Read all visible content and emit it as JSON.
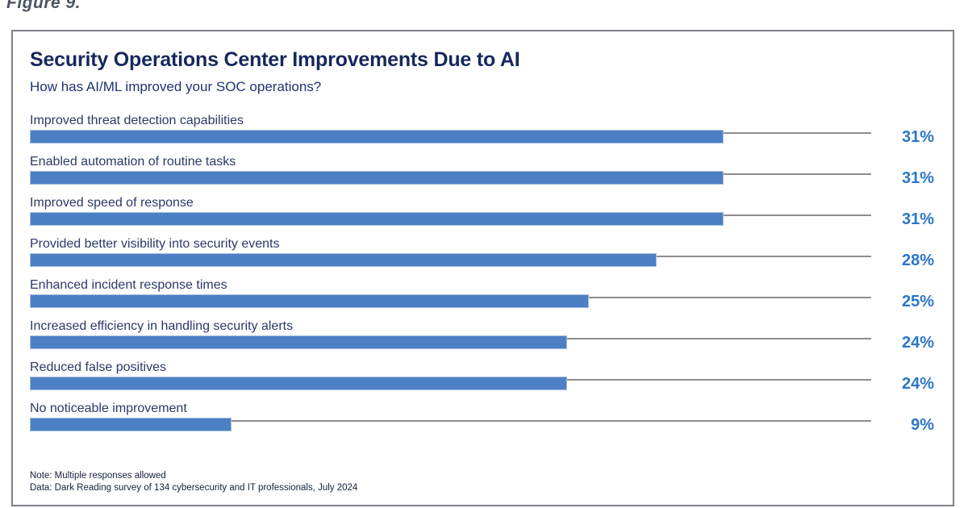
{
  "figure_label": "Figure 9.",
  "chart": {
    "title": "Security Operations Center Improvements Due to AI",
    "subtitle": "How has AI/ML improved your SOC operations?",
    "note": "Note: Multiple responses allowed",
    "source": "Data: Dark Reading survey of 134 cybersecurity and IT professionals, July 2024"
  },
  "chart_data": {
    "type": "bar",
    "orientation": "horizontal",
    "title": "Security Operations Center Improvements Due to AI",
    "subtitle": "How has AI/ML improved your SOC operations?",
    "categories": [
      "Improved threat detection capabilities",
      "Enabled automation of routine tasks",
      "Improved speed of response",
      "Provided better visibility into security events",
      "Enhanced incident response times",
      "Increased efficiency in handling security alerts",
      "Reduced false positives",
      "No noticeable improvement"
    ],
    "values": [
      31,
      31,
      31,
      28,
      25,
      24,
      24,
      9
    ],
    "unit": "%",
    "value_labels": [
      "31%",
      "31%",
      "31%",
      "28%",
      "25%",
      "24%",
      "24%",
      "9%"
    ],
    "xlim": [
      0,
      37.6
    ],
    "grid": false,
    "legend": false,
    "value_label_position": "right",
    "notes": [
      "Note: Multiple responses allowed",
      "Data: Dark Reading survey of 134 cybersecurity and IT professionals, July 2024"
    ],
    "colors": {
      "bar_fill": "#4d7fc4",
      "bar_border": "#a6bfe0",
      "leader_line": "#8d8d8d",
      "value_text": "#2b77c9",
      "label_text": "#2b3968",
      "title_text": "#16285c",
      "subtitle_text": "#1d3472"
    }
  }
}
